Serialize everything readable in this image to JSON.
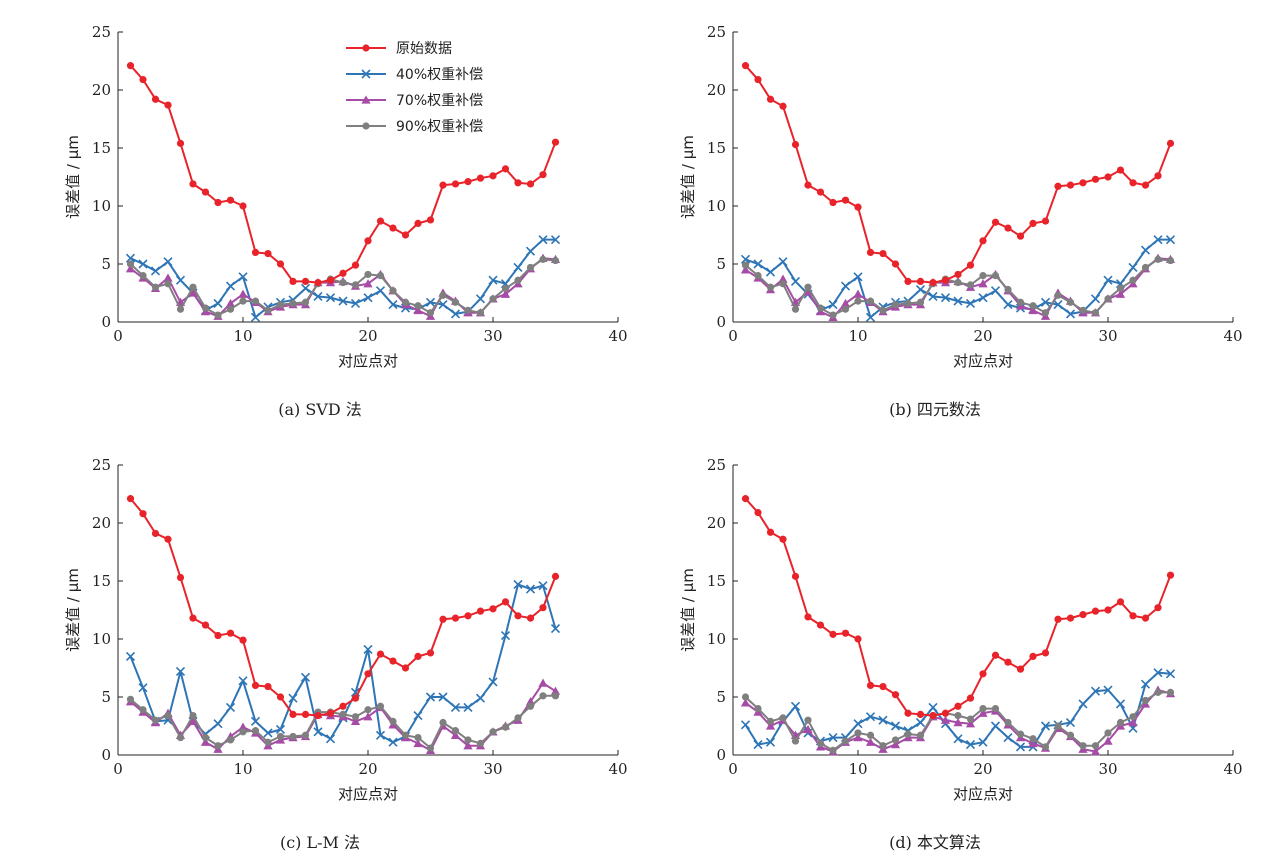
{
  "colors": {
    "original": "#e8232a",
    "w40": "#2e75b6",
    "w70": "#a64ca6",
    "w90": "#7f7f7f",
    "axis": "#222222"
  },
  "chart_data": [
    {
      "type": "line",
      "caption": "(a)  SVD 法",
      "xlabel": "对应点对",
      "ylabel": "误差值 / μm",
      "xlim": [
        0,
        40
      ],
      "ylim": [
        0,
        25
      ],
      "xticks": [
        "0",
        "10",
        "20",
        "30",
        "40"
      ],
      "yticks": [
        "0",
        "5",
        "10",
        "15",
        "20",
        "25"
      ],
      "show_legend": true,
      "x": [
        1,
        2,
        3,
        4,
        5,
        6,
        7,
        8,
        9,
        10,
        11,
        12,
        13,
        14,
        15,
        16,
        17,
        18,
        19,
        20,
        21,
        22,
        23,
        24,
        25,
        26,
        27,
        28,
        29,
        30,
        31,
        32,
        33,
        34,
        35
      ],
      "series": [
        {
          "name": "原始数据",
          "marker": "circle",
          "values": [
            22.1,
            20.9,
            19.2,
            18.7,
            15.4,
            11.9,
            11.2,
            10.3,
            10.5,
            10.0,
            6.0,
            5.9,
            5.0,
            3.5,
            3.5,
            3.4,
            3.6,
            4.2,
            4.9,
            7.0,
            8.7,
            8.1,
            7.5,
            8.5,
            8.8,
            11.8,
            11.9,
            12.1,
            12.4,
            12.6,
            13.2,
            12.0,
            11.9,
            12.7,
            15.5
          ]
        },
        {
          "name": "40%权重补偿",
          "marker": "x",
          "values": [
            5.5,
            5.0,
            4.4,
            5.2,
            3.6,
            2.5,
            1.0,
            1.6,
            3.1,
            3.9,
            0.4,
            1.3,
            1.7,
            1.9,
            2.9,
            2.2,
            2.1,
            1.8,
            1.6,
            2.1,
            2.7,
            1.5,
            1.2,
            1.1,
            1.7,
            1.5,
            0.7,
            0.9,
            2.0,
            3.6,
            3.3,
            4.7,
            6.1,
            7.1,
            7.1
          ]
        },
        {
          "name": "70%权重补偿",
          "marker": "triangle",
          "values": [
            4.6,
            3.8,
            2.9,
            3.8,
            1.7,
            2.5,
            0.9,
            0.5,
            1.6,
            2.4,
            1.7,
            0.9,
            1.3,
            1.5,
            1.5,
            3.4,
            3.4,
            3.5,
            3.1,
            3.3,
            4.1,
            2.7,
            1.5,
            1.0,
            0.5,
            2.5,
            1.8,
            0.8,
            0.8,
            2.0,
            2.4,
            3.3,
            4.6,
            5.5,
            5.4
          ]
        },
        {
          "name": "90%权重补偿",
          "marker": "circle",
          "values": [
            5.0,
            4.0,
            3.0,
            3.3,
            1.1,
            3.0,
            1.2,
            0.6,
            1.1,
            1.8,
            1.8,
            1.0,
            1.5,
            1.6,
            1.7,
            3.3,
            3.7,
            3.4,
            3.2,
            4.1,
            4.0,
            2.7,
            1.7,
            1.4,
            0.8,
            2.3,
            1.7,
            1.0,
            0.8,
            2.0,
            2.9,
            3.6,
            4.7,
            5.4,
            5.3
          ]
        }
      ]
    },
    {
      "type": "line",
      "caption": "(b)  四元数法",
      "xlabel": "对应点对",
      "ylabel": "误差值 / μm",
      "xlim": [
        0,
        40
      ],
      "ylim": [
        0,
        25
      ],
      "xticks": [
        "0",
        "10",
        "20",
        "30",
        "40"
      ],
      "yticks": [
        "0",
        "5",
        "10",
        "15",
        "20",
        "25"
      ],
      "show_legend": false,
      "x": [
        1,
        2,
        3,
        4,
        5,
        6,
        7,
        8,
        9,
        10,
        11,
        12,
        13,
        14,
        15,
        16,
        17,
        18,
        19,
        20,
        21,
        22,
        23,
        24,
        25,
        26,
        27,
        28,
        29,
        30,
        31,
        32,
        33,
        34,
        35
      ],
      "series": [
        {
          "name": "原始数据",
          "marker": "circle",
          "values": [
            22.1,
            20.9,
            19.2,
            18.6,
            15.3,
            11.8,
            11.2,
            10.3,
            10.5,
            9.9,
            6.0,
            5.9,
            5.0,
            3.5,
            3.5,
            3.4,
            3.6,
            4.1,
            4.9,
            7.0,
            8.6,
            8.1,
            7.4,
            8.5,
            8.7,
            11.7,
            11.8,
            12.0,
            12.3,
            12.5,
            13.1,
            12.0,
            11.8,
            12.6,
            15.4
          ]
        },
        {
          "name": "40%权重补偿",
          "marker": "x",
          "values": [
            5.4,
            5.0,
            4.3,
            5.2,
            3.5,
            2.4,
            1.0,
            1.5,
            3.1,
            3.9,
            0.4,
            1.3,
            1.7,
            1.8,
            2.8,
            2.2,
            2.1,
            1.8,
            1.6,
            2.1,
            2.7,
            1.5,
            1.2,
            1.1,
            1.7,
            1.5,
            0.7,
            0.9,
            2.0,
            3.6,
            3.3,
            4.7,
            6.2,
            7.1,
            7.1
          ]
        },
        {
          "name": "70%权重补偿",
          "marker": "triangle",
          "values": [
            4.5,
            3.8,
            2.8,
            3.7,
            1.7,
            2.6,
            0.9,
            0.4,
            1.6,
            2.4,
            1.7,
            0.9,
            1.3,
            1.5,
            1.5,
            3.4,
            3.4,
            3.5,
            3.0,
            3.3,
            4.1,
            2.7,
            1.4,
            1.0,
            0.5,
            2.5,
            1.8,
            0.8,
            0.8,
            2.0,
            2.4,
            3.3,
            4.6,
            5.5,
            5.4
          ]
        },
        {
          "name": "90%权重补偿",
          "marker": "circle",
          "values": [
            4.9,
            4.0,
            3.0,
            3.3,
            1.1,
            3.0,
            1.2,
            0.6,
            1.1,
            1.8,
            1.8,
            1.0,
            1.5,
            1.6,
            1.7,
            3.3,
            3.7,
            3.4,
            3.2,
            4.0,
            4.0,
            2.8,
            1.7,
            1.4,
            0.8,
            2.3,
            1.7,
            1.0,
            0.8,
            2.0,
            2.9,
            3.6,
            4.7,
            5.4,
            5.3
          ]
        }
      ]
    },
    {
      "type": "line",
      "caption": "(c)  L-M 法",
      "xlabel": "对应点对",
      "ylabel": "误差值 / μm",
      "xlim": [
        0,
        40
      ],
      "ylim": [
        0,
        25
      ],
      "xticks": [
        "0",
        "10",
        "20",
        "30",
        "40"
      ],
      "yticks": [
        "0",
        "5",
        "10",
        "15",
        "20",
        "25"
      ],
      "show_legend": false,
      "x": [
        1,
        2,
        3,
        4,
        5,
        6,
        7,
        8,
        9,
        10,
        11,
        12,
        13,
        14,
        15,
        16,
        17,
        18,
        19,
        20,
        21,
        22,
        23,
        24,
        25,
        26,
        27,
        28,
        29,
        30,
        31,
        32,
        33,
        34,
        35
      ],
      "series": [
        {
          "name": "原始数据",
          "marker": "circle",
          "values": [
            22.1,
            20.8,
            19.1,
            18.6,
            15.3,
            11.8,
            11.2,
            10.3,
            10.5,
            9.9,
            6.0,
            5.9,
            5.0,
            3.5,
            3.5,
            3.4,
            3.6,
            4.2,
            4.9,
            7.0,
            8.7,
            8.1,
            7.5,
            8.5,
            8.8,
            11.7,
            11.8,
            12.0,
            12.4,
            12.6,
            13.2,
            12.0,
            11.8,
            12.7,
            15.4
          ]
        },
        {
          "name": "40%权重补偿",
          "marker": "x",
          "values": [
            8.5,
            5.8,
            2.9,
            3.0,
            7.2,
            2.9,
            1.8,
            2.7,
            4.1,
            6.4,
            2.9,
            1.9,
            2.2,
            4.9,
            6.7,
            2.0,
            1.4,
            3.2,
            5.4,
            9.1,
            1.7,
            1.1,
            1.6,
            3.4,
            5.0,
            5.0,
            4.1,
            4.1,
            4.9,
            6.3,
            10.3,
            14.7,
            14.3,
            14.6,
            10.9
          ]
        },
        {
          "name": "70%权重补偿",
          "marker": "triangle",
          "values": [
            4.6,
            3.7,
            2.8,
            3.6,
            1.7,
            2.9,
            1.1,
            0.5,
            1.6,
            2.4,
            1.9,
            0.8,
            1.3,
            1.5,
            1.6,
            3.5,
            3.4,
            3.3,
            2.9,
            3.3,
            4.1,
            2.6,
            1.5,
            1.0,
            0.4,
            2.5,
            1.7,
            0.8,
            0.8,
            2.0,
            2.5,
            3.0,
            4.6,
            6.2,
            5.5
          ]
        },
        {
          "name": "90%权重补偿",
          "marker": "circle",
          "values": [
            4.8,
            3.9,
            3.0,
            3.4,
            1.5,
            3.4,
            1.5,
            0.8,
            1.3,
            2.0,
            2.1,
            1.1,
            1.6,
            1.6,
            1.7,
            3.7,
            3.7,
            3.5,
            3.3,
            3.9,
            4.2,
            2.9,
            1.7,
            1.5,
            0.6,
            2.8,
            2.1,
            1.3,
            1.0,
            2.0,
            2.4,
            3.2,
            4.2,
            5.1,
            5.1
          ]
        }
      ]
    },
    {
      "type": "line",
      "caption": "(d)  本文算法",
      "xlabel": "对应点对",
      "ylabel": "误差值 / μm",
      "xlim": [
        0,
        40
      ],
      "ylim": [
        0,
        25
      ],
      "xticks": [
        "0",
        "10",
        "20",
        "30",
        "40"
      ],
      "yticks": [
        "0",
        "5",
        "10",
        "15",
        "20",
        "25"
      ],
      "show_legend": false,
      "x": [
        1,
        2,
        3,
        4,
        5,
        6,
        7,
        8,
        9,
        10,
        11,
        12,
        13,
        14,
        15,
        16,
        17,
        18,
        19,
        20,
        21,
        22,
        23,
        24,
        25,
        26,
        27,
        28,
        29,
        30,
        31,
        32,
        33,
        34,
        35
      ],
      "series": [
        {
          "name": "原始数据",
          "marker": "circle",
          "values": [
            22.1,
            20.9,
            19.2,
            18.6,
            15.4,
            11.9,
            11.2,
            10.4,
            10.5,
            10.0,
            6.0,
            5.9,
            5.2,
            3.6,
            3.5,
            3.4,
            3.6,
            4.2,
            4.9,
            7.0,
            8.6,
            8.0,
            7.4,
            8.5,
            8.8,
            11.7,
            11.8,
            12.1,
            12.4,
            12.5,
            13.2,
            12.0,
            11.8,
            12.7,
            15.5
          ]
        },
        {
          "name": "40%权重补偿",
          "marker": "x",
          "values": [
            2.6,
            0.9,
            1.1,
            2.9,
            4.2,
            1.9,
            1.2,
            1.5,
            1.5,
            2.7,
            3.3,
            3.0,
            2.5,
            2.1,
            2.8,
            4.1,
            2.7,
            1.4,
            0.9,
            1.1,
            2.5,
            1.5,
            0.7,
            0.7,
            2.5,
            2.6,
            2.8,
            4.4,
            5.5,
            5.6,
            4.4,
            2.3,
            6.1,
            7.1,
            7.0
          ]
        },
        {
          "name": "70%权重补偿",
          "marker": "triangle",
          "values": [
            4.5,
            3.7,
            2.5,
            3.0,
            1.7,
            2.2,
            0.7,
            0.3,
            1.1,
            1.5,
            1.1,
            0.5,
            0.9,
            1.5,
            1.5,
            3.3,
            3.0,
            2.8,
            2.7,
            3.6,
            3.8,
            2.6,
            1.5,
            1.0,
            0.6,
            2.3,
            1.6,
            0.5,
            0.3,
            1.2,
            2.5,
            2.8,
            4.4,
            5.6,
            5.3
          ]
        },
        {
          "name": "90%权重补偿",
          "marker": "circle",
          "values": [
            5.0,
            4.0,
            2.9,
            3.2,
            1.2,
            3.0,
            1.0,
            0.4,
            1.2,
            1.9,
            1.7,
            0.8,
            1.3,
            1.8,
            1.7,
            3.4,
            3.6,
            3.4,
            3.1,
            4.0,
            4.0,
            2.8,
            1.8,
            1.4,
            0.7,
            2.5,
            1.7,
            0.8,
            0.8,
            1.9,
            2.8,
            3.3,
            4.7,
            5.4,
            5.4
          ]
        }
      ]
    }
  ]
}
